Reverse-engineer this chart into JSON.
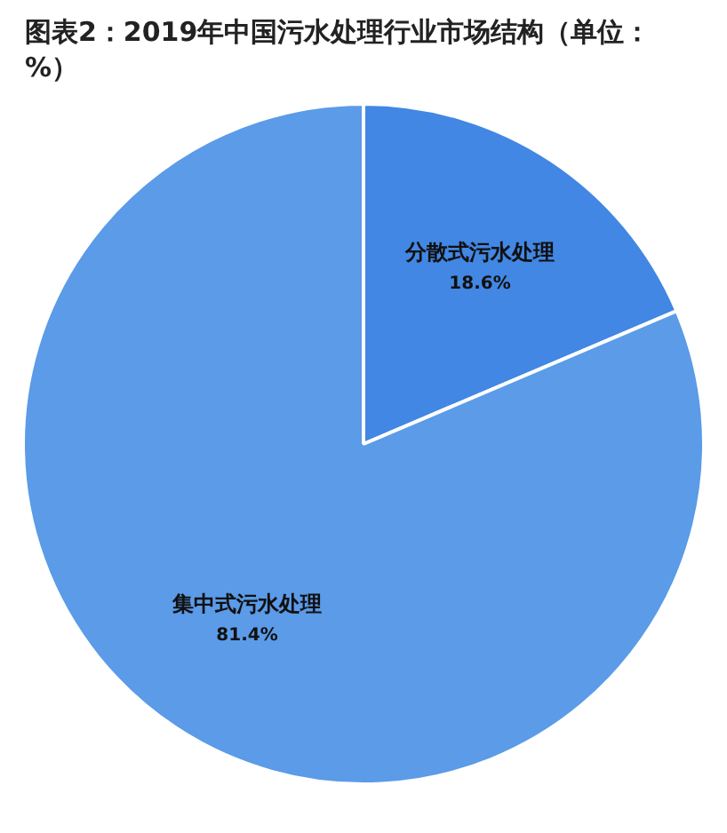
{
  "chart_data": {
    "type": "pie",
    "title": "图表2：2019年中国污水处理行业市场结构（单位：%）",
    "categories": [
      "分散式污水处理",
      "集中式污水处理"
    ],
    "values": [
      18.6,
      81.4
    ],
    "colors": [
      "#4287e3",
      "#5b9be8"
    ],
    "value_labels": [
      "18.6%",
      "81.4%"
    ],
    "legend": false
  }
}
